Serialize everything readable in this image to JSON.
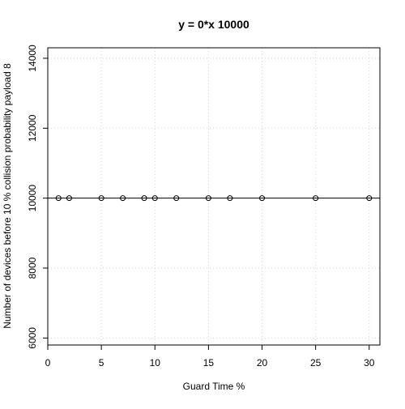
{
  "chart_data": {
    "type": "scatter",
    "title": "y = 0*x 10000",
    "xlabel": "Guard Time %",
    "ylabel": "Number of devices before  10 % collision probability payload 8",
    "xlim": [
      0,
      31
    ],
    "ylim": [
      5800,
      14300
    ],
    "x_ticks": [
      0,
      5,
      10,
      15,
      20,
      25,
      30
    ],
    "y_ticks": [
      6000,
      8000,
      10000,
      12000,
      14000
    ],
    "grid": true,
    "legend": "none",
    "series": [
      {
        "x": [
          1,
          2,
          5,
          7,
          9,
          10,
          12,
          15,
          17,
          20,
          25,
          30
        ],
        "y": [
          10000,
          10000,
          10000,
          10000,
          10000,
          10000,
          10000,
          10000,
          10000,
          10000,
          10000,
          10000
        ]
      }
    ],
    "reference_line": {
      "slope": 0,
      "intercept": 10000
    },
    "colors": {
      "points": "#000000",
      "grid": "#d3d3d3",
      "axis": "#000000"
    }
  }
}
